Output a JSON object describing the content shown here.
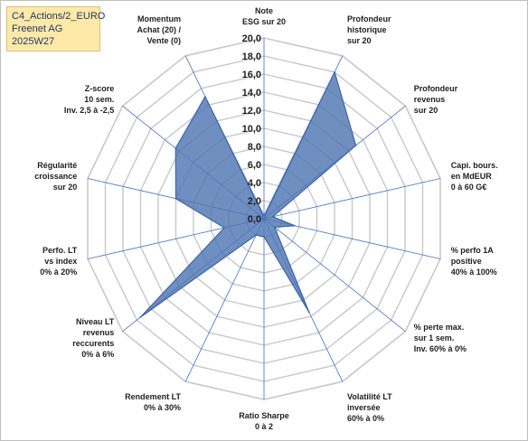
{
  "info": {
    "lines": [
      "C4_Actions/2_EURO",
      "Freenet AG",
      "2025W27"
    ]
  },
  "colors": {
    "fill": "#4f76b3",
    "stroke": "#3f64a6",
    "grid": "#c8c8c8",
    "spoke": "#4472c4"
  },
  "chart_data": {
    "type": "radar",
    "rlim": [
      0,
      20
    ],
    "ticks": [
      "0,0",
      "2,0",
      "4,0",
      "6,0",
      "8,0",
      "10,0",
      "12,0",
      "14,0",
      "16,0",
      "18,0",
      "20,0"
    ],
    "grid": true,
    "axes": [
      [
        "Note",
        "ESG sur 20"
      ],
      [
        "Profondeur",
        "historique",
        "sur 20"
      ],
      [
        "Profondeur",
        "revenus",
        "sur 20"
      ],
      [
        "Capi. bours.",
        "en MdEUR",
        "0 à 60 G€"
      ],
      [
        "% perfo 1A",
        "positive",
        "40% à 100%"
      ],
      [
        "% perte max.",
        "sur 1 sem.",
        "Inv. 60% à 0%"
      ],
      [
        "Volatilité LT",
        "inversée",
        "60% à 0%"
      ],
      [
        "Ratio Sharpe",
        "0 à 2"
      ],
      [
        "Rendement LT",
        "0% à 30%"
      ],
      [
        "Niveau LT",
        "revenus",
        "reccurents",
        "0% à 6%"
      ],
      [
        "Perfo. LT",
        "vs index",
        "0% à 20%"
      ],
      [
        "Régularité",
        "croissance",
        "sur 20"
      ],
      [
        "Z-score",
        "10 sem.",
        "Inv. 2,5 à -2,5"
      ],
      [
        "Momentum",
        "Achat (20) /",
        "Vente (0)"
      ]
    ],
    "values": [
      0.3,
      18.0,
      13.0,
      1.0,
      3.5,
      1.5,
      11.5,
      2.0,
      2.0,
      17.5,
      4.5,
      10.0,
      12.5,
      15.0
    ]
  }
}
